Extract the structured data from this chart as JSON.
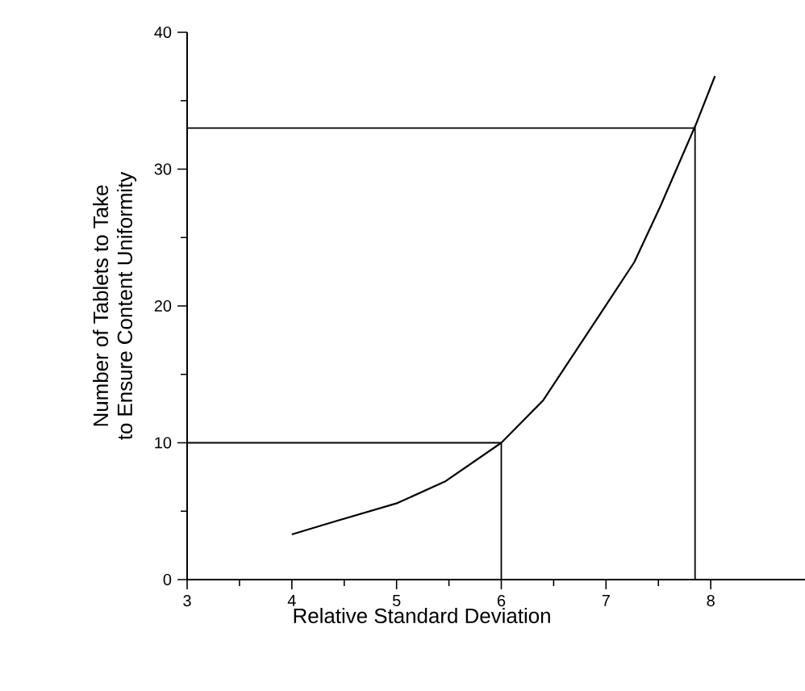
{
  "chart_data": {
    "type": "line",
    "xlabel": "Relative Standard Deviation",
    "ylabel": "Number of Tablets to Take\nto Ensure Content Uniformity",
    "xlim": [
      3,
      8.9
    ],
    "xticks": [
      3,
      4,
      5,
      6,
      7,
      8
    ],
    "ylim": [
      0,
      40
    ],
    "yticks": [
      0,
      10,
      20,
      30,
      40
    ],
    "grid": false,
    "marker": "none",
    "line_style": "solid",
    "x": [
      4.0,
      4.39,
      5.01,
      5.47,
      6.0,
      6.4,
      6.96,
      7.27,
      7.52,
      7.86,
      8.04
    ],
    "series": [
      {
        "color": "#000000",
        "values": [
          3.3,
          4.2,
          5.6,
          7.2,
          10.0,
          13.1,
          19.6,
          23.2,
          27.3,
          33.3,
          36.8
        ]
      }
    ],
    "ref_lines": [
      {
        "axis": "y",
        "value": 10
      },
      {
        "axis": "x",
        "value": 6
      },
      {
        "axis": "y",
        "value": 33
      },
      {
        "axis": "x",
        "value": 7.85
      }
    ]
  }
}
